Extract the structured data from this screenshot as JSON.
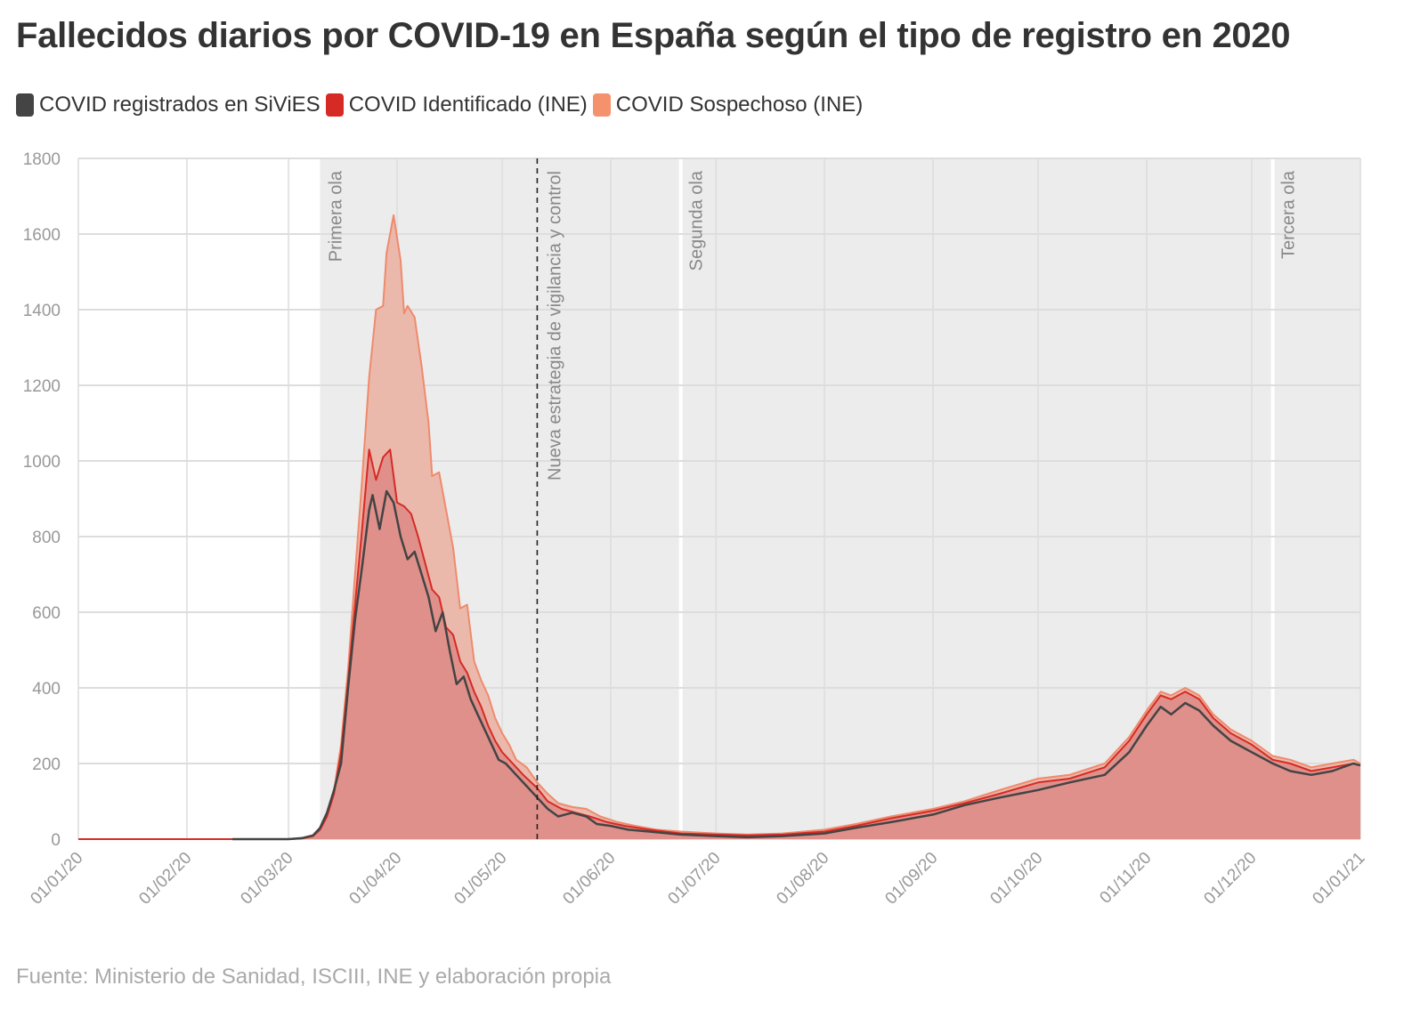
{
  "title": "Fallecidos diarios por COVID-19 en España según el tipo de registro en 2020",
  "source": "Fuente: Ministerio de Sanidad, ISCIII, INE y elaboración propia",
  "legend": [
    {
      "label": "COVID registrados en SiViES",
      "color": "#444444"
    },
    {
      "label": "COVID Identificado (INE)",
      "color": "#d62a25"
    },
    {
      "label": "COVID Sospechoso (INE)",
      "color": "#f4926e"
    }
  ],
  "chart_data": {
    "type": "area",
    "ylim": [
      0,
      1800
    ],
    "yticks": [
      0,
      200,
      400,
      600,
      800,
      1000,
      1200,
      1400,
      1600,
      1800
    ],
    "xlim": [
      "2020-01-01",
      "2021-01-01"
    ],
    "xticks": [
      "01/01/20",
      "01/02/20",
      "01/03/20",
      "01/04/20",
      "01/05/20",
      "01/06/20",
      "01/07/20",
      "01/08/20",
      "01/09/20",
      "01/10/20",
      "01/11/20",
      "01/12/20",
      "01/01/21"
    ],
    "xtick_dates": [
      "2020-01-01",
      "2020-02-01",
      "2020-03-01",
      "2020-04-01",
      "2020-05-01",
      "2020-06-01",
      "2020-07-01",
      "2020-08-01",
      "2020-09-01",
      "2020-10-01",
      "2020-11-01",
      "2020-12-01",
      "2021-01-01"
    ],
    "grid": true,
    "shaded_periods": [
      {
        "start": "2020-03-10",
        "end": "2020-06-21",
        "label": "Primera ola"
      },
      {
        "start": "2020-06-21",
        "end": "2020-12-07",
        "label": "Segunda ola"
      },
      {
        "start": "2020-12-07",
        "end": "2021-01-01",
        "label": "Tercera ola"
      }
    ],
    "vertical_markers": [
      {
        "date": "2020-05-11",
        "label": "Nueva estrategia de vigilancia y control",
        "style": "dashed"
      }
    ],
    "series": [
      {
        "name": "COVID Sospechoso (INE)",
        "points": [
          [
            "2020-01-01",
            0
          ],
          [
            "2020-03-01",
            0
          ],
          [
            "2020-03-05",
            2
          ],
          [
            "2020-03-08",
            8
          ],
          [
            "2020-03-10",
            25
          ],
          [
            "2020-03-12",
            60
          ],
          [
            "2020-03-14",
            130
          ],
          [
            "2020-03-16",
            250
          ],
          [
            "2020-03-18",
            450
          ],
          [
            "2020-03-20",
            700
          ],
          [
            "2020-03-22",
            950
          ],
          [
            "2020-03-24",
            1220
          ],
          [
            "2020-03-26",
            1400
          ],
          [
            "2020-03-28",
            1410
          ],
          [
            "2020-03-29",
            1550
          ],
          [
            "2020-03-31",
            1650
          ],
          [
            "2020-04-02",
            1530
          ],
          [
            "2020-04-03",
            1390
          ],
          [
            "2020-04-04",
            1410
          ],
          [
            "2020-04-06",
            1380
          ],
          [
            "2020-04-08",
            1250
          ],
          [
            "2020-04-10",
            1100
          ],
          [
            "2020-04-11",
            960
          ],
          [
            "2020-04-13",
            970
          ],
          [
            "2020-04-15",
            870
          ],
          [
            "2020-04-17",
            770
          ],
          [
            "2020-04-19",
            610
          ],
          [
            "2020-04-21",
            620
          ],
          [
            "2020-04-23",
            470
          ],
          [
            "2020-04-25",
            420
          ],
          [
            "2020-04-27",
            380
          ],
          [
            "2020-04-29",
            320
          ],
          [
            "2020-05-01",
            280
          ],
          [
            "2020-05-03",
            250
          ],
          [
            "2020-05-05",
            210
          ],
          [
            "2020-05-08",
            190
          ],
          [
            "2020-05-11",
            150
          ],
          [
            "2020-05-14",
            120
          ],
          [
            "2020-05-17",
            95
          ],
          [
            "2020-05-21",
            85
          ],
          [
            "2020-05-25",
            80
          ],
          [
            "2020-05-29",
            60
          ],
          [
            "2020-06-03",
            45
          ],
          [
            "2020-06-08",
            35
          ],
          [
            "2020-06-14",
            25
          ],
          [
            "2020-06-21",
            20
          ],
          [
            "2020-07-01",
            15
          ],
          [
            "2020-07-10",
            12
          ],
          [
            "2020-07-20",
            15
          ],
          [
            "2020-08-01",
            25
          ],
          [
            "2020-08-10",
            40
          ],
          [
            "2020-08-20",
            60
          ],
          [
            "2020-09-01",
            80
          ],
          [
            "2020-09-10",
            100
          ],
          [
            "2020-09-20",
            130
          ],
          [
            "2020-10-01",
            160
          ],
          [
            "2020-10-10",
            170
          ],
          [
            "2020-10-20",
            200
          ],
          [
            "2020-10-27",
            270
          ],
          [
            "2020-11-01",
            340
          ],
          [
            "2020-11-05",
            390
          ],
          [
            "2020-11-08",
            380
          ],
          [
            "2020-11-12",
            400
          ],
          [
            "2020-11-16",
            380
          ],
          [
            "2020-11-20",
            330
          ],
          [
            "2020-11-25",
            290
          ],
          [
            "2020-12-01",
            260
          ],
          [
            "2020-12-07",
            220
          ],
          [
            "2020-12-12",
            210
          ],
          [
            "2020-12-18",
            190
          ],
          [
            "2020-12-24",
            200
          ],
          [
            "2020-12-30",
            210
          ],
          [
            "2021-01-01",
            200
          ]
        ]
      },
      {
        "name": "COVID Identificado (INE)",
        "points": [
          [
            "2020-01-01",
            0
          ],
          [
            "2020-03-01",
            0
          ],
          [
            "2020-03-05",
            2
          ],
          [
            "2020-03-08",
            8
          ],
          [
            "2020-03-10",
            25
          ],
          [
            "2020-03-12",
            60
          ],
          [
            "2020-03-14",
            120
          ],
          [
            "2020-03-16",
            230
          ],
          [
            "2020-03-18",
            420
          ],
          [
            "2020-03-20",
            620
          ],
          [
            "2020-03-22",
            820
          ],
          [
            "2020-03-24",
            1030
          ],
          [
            "2020-03-26",
            950
          ],
          [
            "2020-03-28",
            1010
          ],
          [
            "2020-03-30",
            1030
          ],
          [
            "2020-04-01",
            890
          ],
          [
            "2020-04-03",
            880
          ],
          [
            "2020-04-05",
            860
          ],
          [
            "2020-04-07",
            800
          ],
          [
            "2020-04-09",
            730
          ],
          [
            "2020-04-11",
            660
          ],
          [
            "2020-04-13",
            640
          ],
          [
            "2020-04-15",
            560
          ],
          [
            "2020-04-17",
            540
          ],
          [
            "2020-04-19",
            470
          ],
          [
            "2020-04-21",
            440
          ],
          [
            "2020-04-23",
            390
          ],
          [
            "2020-04-25",
            350
          ],
          [
            "2020-04-27",
            300
          ],
          [
            "2020-04-29",
            260
          ],
          [
            "2020-05-01",
            230
          ],
          [
            "2020-05-04",
            200
          ],
          [
            "2020-05-07",
            170
          ],
          [
            "2020-05-11",
            135
          ],
          [
            "2020-05-14",
            100
          ],
          [
            "2020-05-18",
            80
          ],
          [
            "2020-05-22",
            70
          ],
          [
            "2020-05-26",
            60
          ],
          [
            "2020-05-31",
            45
          ],
          [
            "2020-06-05",
            35
          ],
          [
            "2020-06-12",
            25
          ],
          [
            "2020-06-21",
            15
          ],
          [
            "2020-07-01",
            12
          ],
          [
            "2020-07-10",
            10
          ],
          [
            "2020-07-20",
            12
          ],
          [
            "2020-08-01",
            20
          ],
          [
            "2020-08-10",
            35
          ],
          [
            "2020-08-20",
            55
          ],
          [
            "2020-09-01",
            75
          ],
          [
            "2020-09-10",
            95
          ],
          [
            "2020-09-20",
            120
          ],
          [
            "2020-10-01",
            150
          ],
          [
            "2020-10-10",
            160
          ],
          [
            "2020-10-20",
            190
          ],
          [
            "2020-10-27",
            260
          ],
          [
            "2020-11-01",
            330
          ],
          [
            "2020-11-05",
            380
          ],
          [
            "2020-11-08",
            370
          ],
          [
            "2020-11-12",
            390
          ],
          [
            "2020-11-16",
            370
          ],
          [
            "2020-11-20",
            320
          ],
          [
            "2020-11-25",
            280
          ],
          [
            "2020-12-01",
            250
          ],
          [
            "2020-12-07",
            210
          ],
          [
            "2020-12-12",
            200
          ],
          [
            "2020-12-18",
            180
          ],
          [
            "2020-12-24",
            190
          ],
          [
            "2020-12-30",
            200
          ],
          [
            "2021-01-01",
            195
          ]
        ]
      },
      {
        "name": "COVID registrados en SiViES",
        "points": [
          [
            "2020-02-14",
            0
          ],
          [
            "2020-03-01",
            0
          ],
          [
            "2020-03-05",
            3
          ],
          [
            "2020-03-08",
            10
          ],
          [
            "2020-03-10",
            30
          ],
          [
            "2020-03-12",
            70
          ],
          [
            "2020-03-14",
            130
          ],
          [
            "2020-03-16",
            200
          ],
          [
            "2020-03-18",
            400
          ],
          [
            "2020-03-20",
            580
          ],
          [
            "2020-03-22",
            720
          ],
          [
            "2020-03-24",
            870
          ],
          [
            "2020-03-25",
            910
          ],
          [
            "2020-03-27",
            820
          ],
          [
            "2020-03-29",
            920
          ],
          [
            "2020-03-31",
            890
          ],
          [
            "2020-04-02",
            800
          ],
          [
            "2020-04-04",
            740
          ],
          [
            "2020-04-06",
            760
          ],
          [
            "2020-04-08",
            700
          ],
          [
            "2020-04-10",
            640
          ],
          [
            "2020-04-12",
            550
          ],
          [
            "2020-04-14",
            600
          ],
          [
            "2020-04-16",
            500
          ],
          [
            "2020-04-18",
            410
          ],
          [
            "2020-04-20",
            430
          ],
          [
            "2020-04-22",
            370
          ],
          [
            "2020-04-24",
            330
          ],
          [
            "2020-04-26",
            290
          ],
          [
            "2020-04-28",
            250
          ],
          [
            "2020-04-30",
            210
          ],
          [
            "2020-05-02",
            200
          ],
          [
            "2020-05-05",
            170
          ],
          [
            "2020-05-08",
            140
          ],
          [
            "2020-05-11",
            110
          ],
          [
            "2020-05-14",
            80
          ],
          [
            "2020-05-17",
            60
          ],
          [
            "2020-05-21",
            70
          ],
          [
            "2020-05-25",
            60
          ],
          [
            "2020-05-28",
            40
          ],
          [
            "2020-06-01",
            35
          ],
          [
            "2020-06-06",
            25
          ],
          [
            "2020-06-12",
            20
          ],
          [
            "2020-06-21",
            12
          ],
          [
            "2020-07-01",
            8
          ],
          [
            "2020-07-10",
            5
          ],
          [
            "2020-07-20",
            8
          ],
          [
            "2020-08-01",
            15
          ],
          [
            "2020-08-10",
            30
          ],
          [
            "2020-08-20",
            45
          ],
          [
            "2020-09-01",
            65
          ],
          [
            "2020-09-10",
            90
          ],
          [
            "2020-09-20",
            110
          ],
          [
            "2020-10-01",
            130
          ],
          [
            "2020-10-10",
            150
          ],
          [
            "2020-10-20",
            170
          ],
          [
            "2020-10-27",
            230
          ],
          [
            "2020-11-01",
            300
          ],
          [
            "2020-11-05",
            350
          ],
          [
            "2020-11-08",
            330
          ],
          [
            "2020-11-12",
            360
          ],
          [
            "2020-11-16",
            340
          ],
          [
            "2020-11-20",
            300
          ],
          [
            "2020-11-25",
            260
          ],
          [
            "2020-12-01",
            230
          ],
          [
            "2020-12-07",
            200
          ],
          [
            "2020-12-12",
            180
          ],
          [
            "2020-12-18",
            170
          ],
          [
            "2020-12-24",
            180
          ],
          [
            "2020-12-30",
            200
          ],
          [
            "2021-01-01",
            195
          ]
        ]
      }
    ]
  }
}
